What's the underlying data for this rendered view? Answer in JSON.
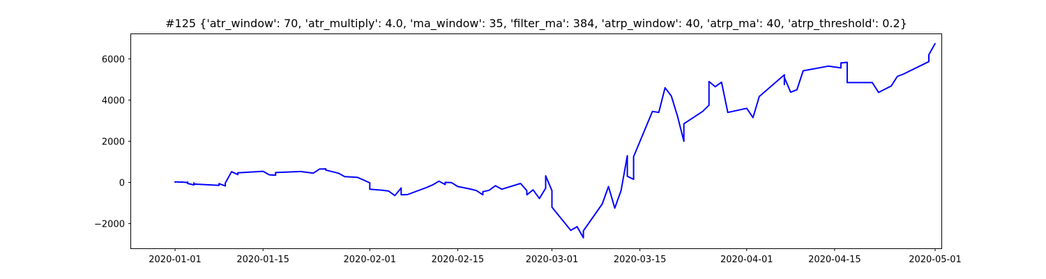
{
  "chart_data": {
    "type": "line",
    "title": "#125 {'atr_window': 70, 'atr_multiply': 4.0, 'ma_window': 35, 'filter_ma': 384, 'atrp_window': 40, 'atrp_ma': 40, 'atrp_threshold': 0.2}",
    "xlabel": "",
    "ylabel": "",
    "x_axis_type": "date",
    "xlim": [
      "2019-12-25",
      "2020-05-02"
    ],
    "ylim": [
      -3200,
      7200
    ],
    "grid": false,
    "x_tick_labels": [
      "2020-01-01",
      "2020-01-15",
      "2020-02-01",
      "2020-02-15",
      "2020-03-01",
      "2020-03-15",
      "2020-04-01",
      "2020-04-15",
      "2020-05-01"
    ],
    "y_tick_labels": [
      "−2000",
      "0",
      "2000",
      "4000",
      "6000"
    ],
    "y_tick_values": [
      -2000,
      0,
      2000,
      4000,
      6000
    ],
    "series": [
      {
        "color": "#0000ff",
        "points": [
          [
            "2020-01-01",
            0
          ],
          [
            "2020-01-01",
            30
          ],
          [
            "2020-01-02",
            10
          ],
          [
            "2020-01-02",
            20
          ],
          [
            "2020-01-03",
            -10
          ],
          [
            "2020-01-03",
            20
          ],
          [
            "2020-01-03",
            -50
          ],
          [
            "2020-01-04",
            -120
          ],
          [
            "2020-01-04",
            -20
          ],
          [
            "2020-01-04",
            -80
          ],
          [
            "2020-01-08",
            -140
          ],
          [
            "2020-01-08",
            -60
          ],
          [
            "2020-01-09",
            -170
          ],
          [
            "2020-01-09",
            -30
          ],
          [
            "2020-01-10",
            520
          ],
          [
            "2020-01-11",
            380
          ],
          [
            "2020-01-11",
            470
          ],
          [
            "2020-01-15",
            540
          ],
          [
            "2020-01-16",
            370
          ],
          [
            "2020-01-17",
            350
          ],
          [
            "2020-01-17",
            480
          ],
          [
            "2020-01-21",
            530
          ],
          [
            "2020-01-23",
            450
          ],
          [
            "2020-01-24",
            650
          ],
          [
            "2020-01-25",
            660
          ],
          [
            "2020-01-25",
            600
          ],
          [
            "2020-01-27",
            450
          ],
          [
            "2020-01-28",
            280
          ],
          [
            "2020-01-30",
            250
          ],
          [
            "2020-01-31",
            120
          ],
          [
            "2020-02-01",
            -20
          ],
          [
            "2020-02-01",
            -330
          ],
          [
            "2020-02-03",
            -380
          ],
          [
            "2020-02-04",
            -420
          ],
          [
            "2020-02-05",
            -640
          ],
          [
            "2020-02-06",
            -270
          ],
          [
            "2020-02-06",
            -600
          ],
          [
            "2020-02-07",
            -590
          ],
          [
            "2020-02-10",
            -250
          ],
          [
            "2020-02-11",
            -120
          ],
          [
            "2020-02-12",
            60
          ],
          [
            "2020-02-13",
            -100
          ],
          [
            "2020-02-13",
            0
          ],
          [
            "2020-02-14",
            -10
          ],
          [
            "2020-02-15",
            -200
          ],
          [
            "2020-02-17",
            -320
          ],
          [
            "2020-02-18",
            -400
          ],
          [
            "2020-02-19",
            -600
          ],
          [
            "2020-02-19",
            -450
          ],
          [
            "2020-02-20",
            -380
          ],
          [
            "2020-02-21",
            -160
          ],
          [
            "2020-02-22",
            -330
          ],
          [
            "2020-02-25",
            -50
          ],
          [
            "2020-02-26",
            -400
          ],
          [
            "2020-02-26",
            -600
          ],
          [
            "2020-02-27",
            -360
          ],
          [
            "2020-02-28",
            -780
          ],
          [
            "2020-02-29",
            -280
          ],
          [
            "2020-02-29",
            320
          ],
          [
            "2020-03-01",
            -400
          ],
          [
            "2020-03-01",
            -1200
          ],
          [
            "2020-03-04",
            -2330
          ],
          [
            "2020-03-05",
            -2150
          ],
          [
            "2020-03-06",
            -2690
          ],
          [
            "2020-03-06",
            -2350
          ],
          [
            "2020-03-09",
            -1050
          ],
          [
            "2020-03-10",
            -200
          ],
          [
            "2020-03-11",
            -1250
          ],
          [
            "2020-03-12",
            -400
          ],
          [
            "2020-03-13",
            1300
          ],
          [
            "2020-03-13",
            300
          ],
          [
            "2020-03-14",
            150
          ],
          [
            "2020-03-14",
            1250
          ],
          [
            "2020-03-17",
            3450
          ],
          [
            "2020-03-18",
            3400
          ],
          [
            "2020-03-19",
            4600
          ],
          [
            "2020-03-20",
            4200
          ],
          [
            "2020-03-21",
            3200
          ],
          [
            "2020-03-22",
            2000
          ],
          [
            "2020-03-22",
            2850
          ],
          [
            "2020-03-25",
            3450
          ],
          [
            "2020-03-26",
            3750
          ],
          [
            "2020-03-26",
            4900
          ],
          [
            "2020-03-27",
            4650
          ],
          [
            "2020-03-28",
            4870
          ],
          [
            "2020-03-29",
            3400
          ],
          [
            "2020-04-01",
            3600
          ],
          [
            "2020-04-02",
            3150
          ],
          [
            "2020-04-03",
            4170
          ],
          [
            "2020-04-07",
            5230
          ],
          [
            "2020-04-07",
            4750
          ],
          [
            "2020-04-07",
            5100
          ],
          [
            "2020-04-08",
            4380
          ],
          [
            "2020-04-09",
            4500
          ],
          [
            "2020-04-10",
            5420
          ],
          [
            "2020-04-14",
            5650
          ],
          [
            "2020-04-16",
            5560
          ],
          [
            "2020-04-16",
            5800
          ],
          [
            "2020-04-17",
            5830
          ],
          [
            "2020-04-17",
            4850
          ],
          [
            "2020-04-21",
            4850
          ],
          [
            "2020-04-22",
            4370
          ],
          [
            "2020-04-24",
            4680
          ],
          [
            "2020-04-25",
            5150
          ],
          [
            "2020-04-26",
            5270
          ],
          [
            "2020-04-30",
            5870
          ],
          [
            "2020-04-30",
            6200
          ],
          [
            "2020-05-01",
            6750
          ]
        ]
      }
    ]
  }
}
